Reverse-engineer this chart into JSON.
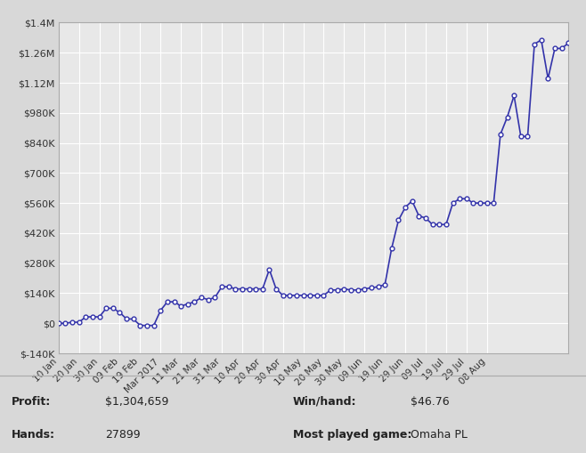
{
  "line_color": "#3333aa",
  "marker_color": "#3333aa",
  "bg_color": "#d8d8d8",
  "plot_bg_color": "#e8e8e8",
  "grid_color": "#ffffff",
  "text_color": "#333333",
  "ylim": [
    -140000,
    1400000
  ],
  "yticks": [
    -140000,
    0,
    140000,
    280000,
    420000,
    560000,
    700000,
    840000,
    980000,
    1120000,
    1260000,
    1400000
  ],
  "ytick_labels": [
    "$-140K",
    "$0",
    "$140K",
    "$280K",
    "$420K",
    "$560K",
    "$700K",
    "$840K",
    "$980K",
    "$1.12M",
    "$1.26M",
    "$1.4M"
  ],
  "stats_labels": [
    "Profit:",
    "Hands:"
  ],
  "stats_values": [
    "$1,304,659",
    "27899"
  ],
  "stats_labels2": [
    "Win/hand:",
    "Most played game:"
  ],
  "stats_values2": [
    "$46.76",
    "Omaha PL"
  ],
  "x_data": [
    0,
    1,
    2,
    3,
    4,
    5,
    6,
    7,
    8,
    9,
    10,
    11,
    12,
    13,
    14,
    15,
    16,
    17,
    18,
    19,
    20,
    21,
    22,
    23,
    24,
    25,
    26,
    27,
    28,
    29,
    30,
    31,
    32,
    33,
    34,
    35,
    36,
    37,
    38,
    39,
    40,
    41,
    42,
    43,
    44,
    45,
    46,
    47,
    48,
    49,
    50,
    51,
    52,
    53,
    54,
    55,
    56,
    57,
    58,
    59,
    60,
    61,
    62,
    63,
    64,
    65,
    66,
    67,
    68,
    69,
    70,
    71,
    72,
    73,
    74,
    75
  ],
  "y_data": [
    0,
    0,
    5000,
    5000,
    30000,
    30000,
    30000,
    70000,
    70000,
    50000,
    20000,
    20000,
    -10000,
    -10000,
    -10000,
    60000,
    100000,
    100000,
    80000,
    90000,
    100000,
    120000,
    110000,
    120000,
    170000,
    170000,
    160000,
    160000,
    160000,
    160000,
    160000,
    250000,
    160000,
    130000,
    130000,
    130000,
    130000,
    130000,
    130000,
    130000,
    155000,
    155000,
    160000,
    155000,
    155000,
    160000,
    165000,
    170000,
    180000,
    350000,
    480000,
    540000,
    570000,
    500000,
    490000,
    460000,
    460000,
    460000,
    560000,
    580000,
    580000,
    560000,
    560000,
    560000,
    560000,
    880000,
    960000,
    1060000,
    870000,
    870000,
    1300000,
    1320000,
    1140000,
    1280000,
    1280000,
    1304659
  ],
  "x_tick_positions": [
    0,
    3,
    6,
    9,
    12,
    15,
    18,
    21,
    24,
    27,
    30,
    33,
    36,
    39,
    42,
    45,
    48,
    51,
    54,
    57,
    60,
    63,
    66,
    69,
    72,
    75
  ],
  "x_tick_labels": [
    "10 Jan",
    "20 Jan",
    "30 Jan",
    "09 Feb",
    "19 Feb",
    "Mar 2017",
    "11 Mar",
    "21 Mar",
    "31 Mar",
    "10 Apr",
    "20 Apr",
    "30 Apr",
    "10 May",
    "20 May",
    "30 May",
    "09 Jun",
    "19 Jun",
    "29 Jun",
    "09 Jul",
    "19 Jul",
    "29 Jul",
    "08 Aug",
    "",
    "",
    "",
    ""
  ]
}
